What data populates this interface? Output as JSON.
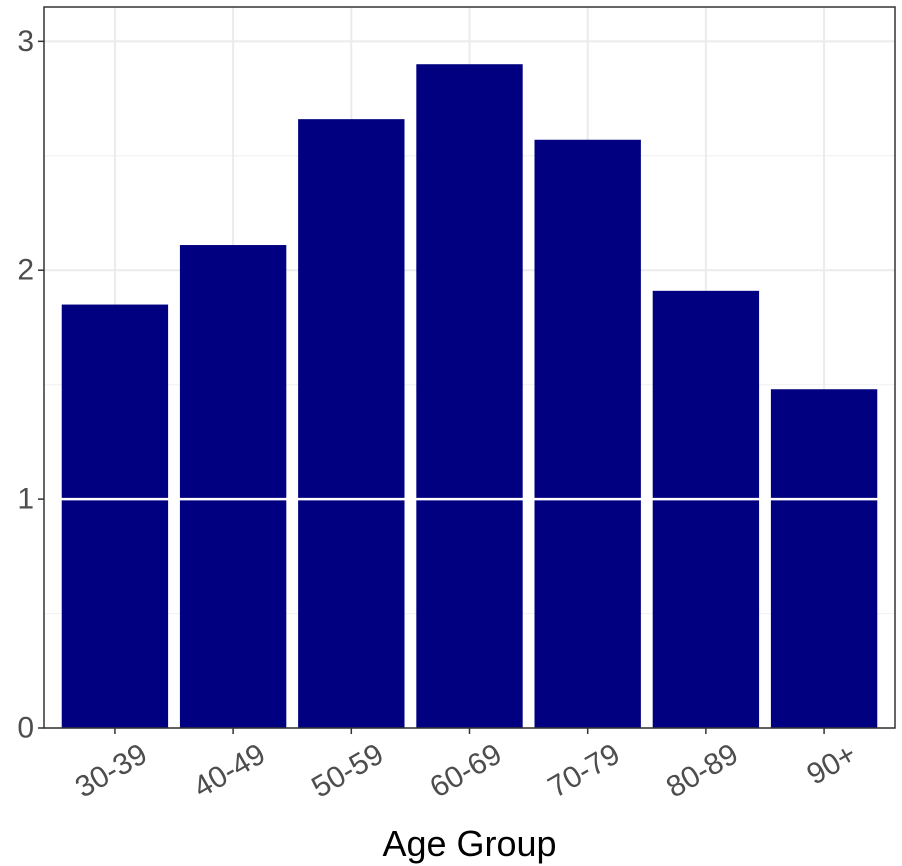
{
  "chart_data": {
    "type": "bar",
    "title": "",
    "xlabel": "Age Group",
    "ylabel": "",
    "categories": [
      "30-39",
      "40-49",
      "50-59",
      "60-69",
      "70-79",
      "80-89",
      "90+"
    ],
    "values": [
      1.85,
      2.11,
      2.66,
      2.9,
      2.57,
      1.91,
      1.48
    ],
    "ylim": [
      0,
      3.15
    ],
    "yticks": [
      0,
      1,
      2,
      3
    ],
    "ytick_labels": [
      "0",
      "1",
      "2",
      "3"
    ],
    "grid": true,
    "legend": "none",
    "reference_line": 1
  },
  "colors": {
    "bar": "#000080",
    "grid_major": "#ebebeb",
    "grid_minor": "#f2f2f2",
    "panel_border": "#333333",
    "reference_line": "#ffffff"
  }
}
